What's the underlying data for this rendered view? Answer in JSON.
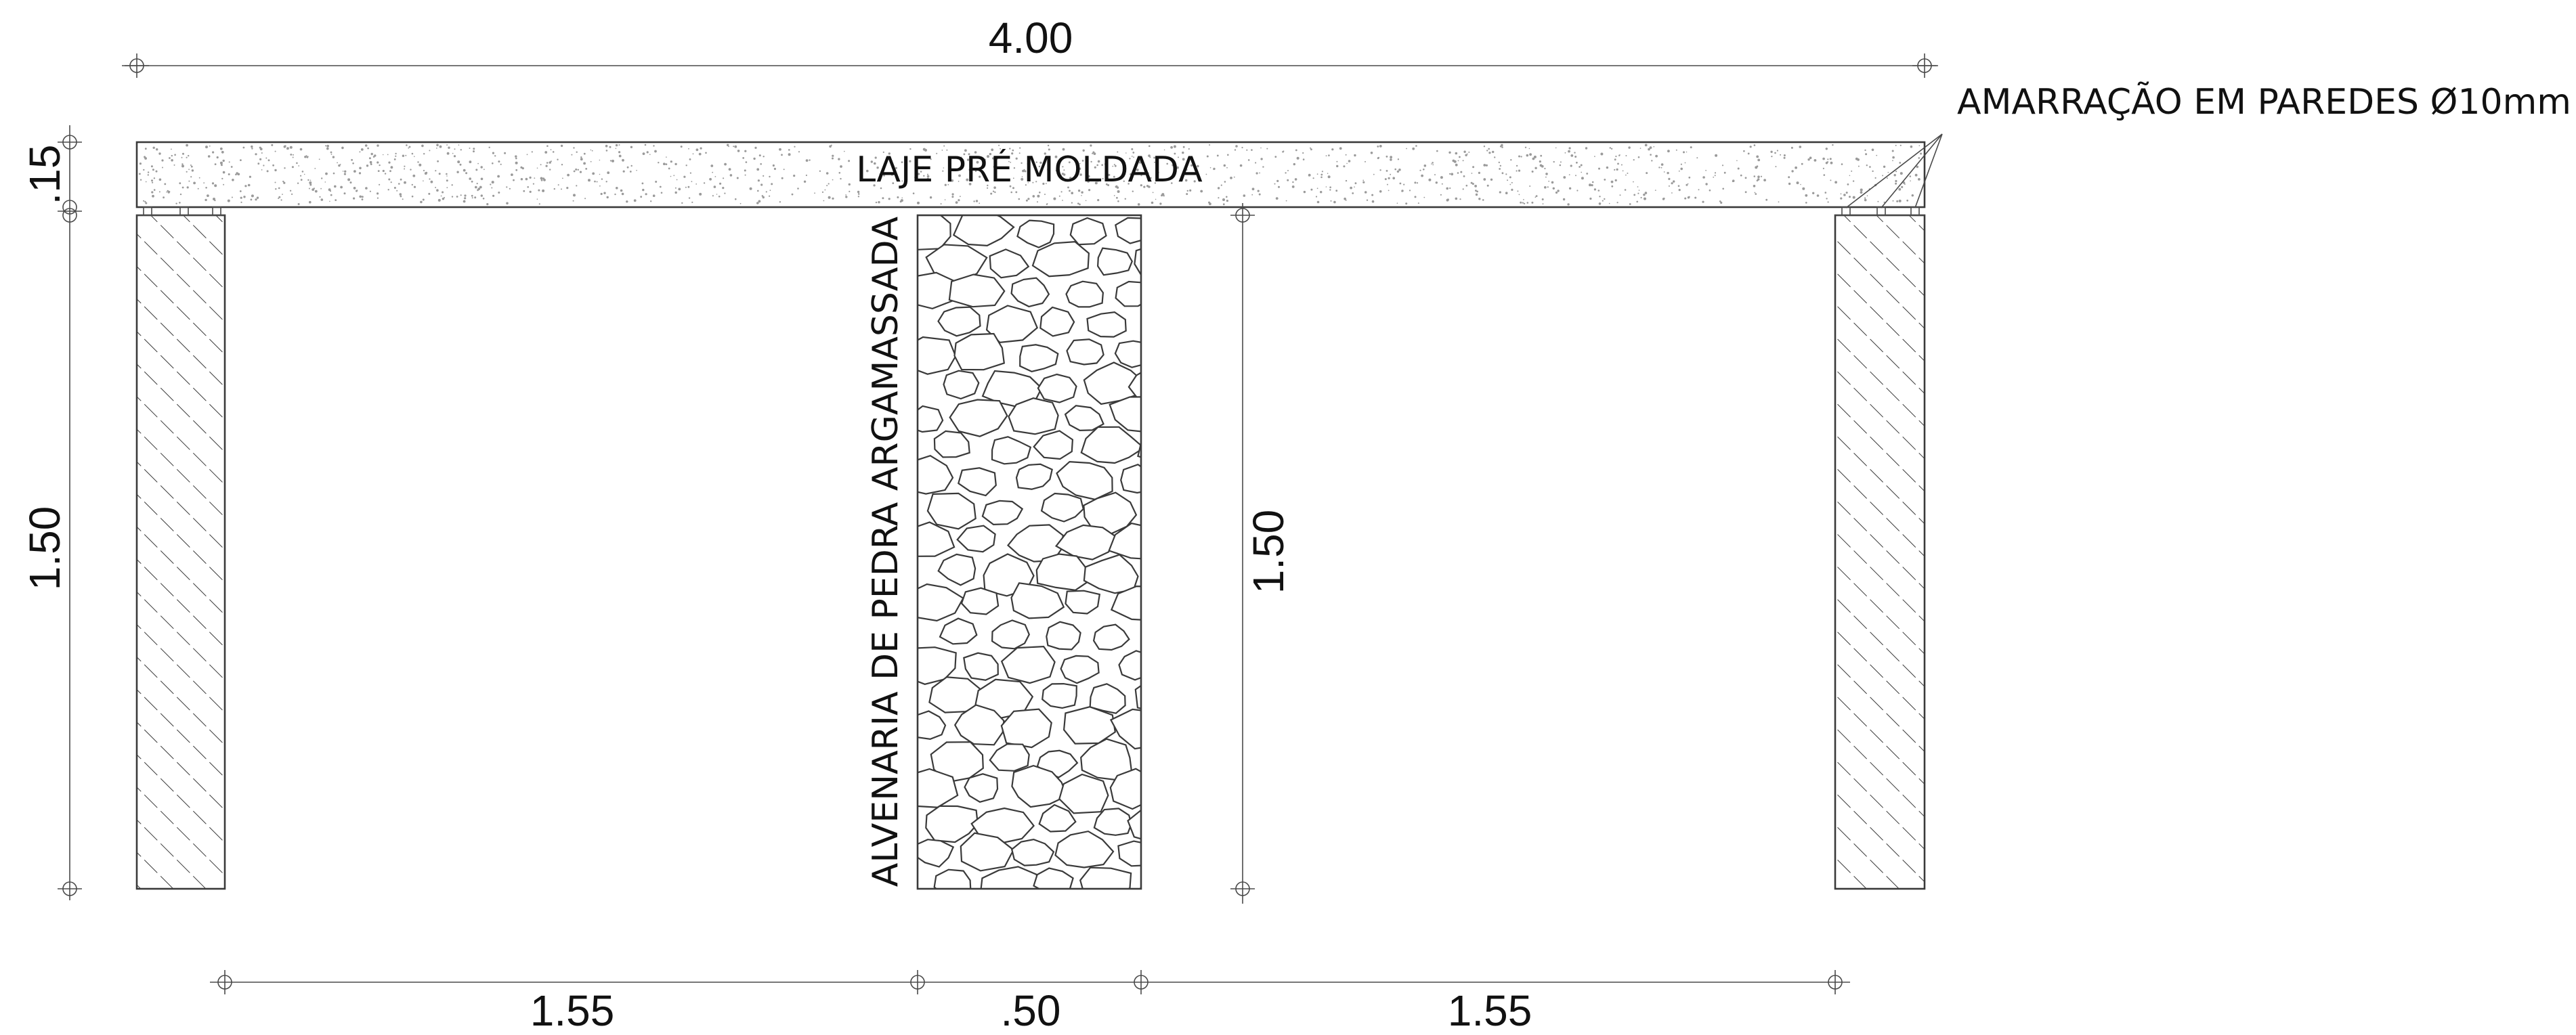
{
  "dimensions": {
    "total_width": "4.00",
    "slab_thickness": ".15",
    "wall_height_left": "1.50",
    "wall_height_center": "1.50",
    "span_left": "1.55",
    "center_wall_width": ".50",
    "span_right": "1.55"
  },
  "labels": {
    "slab": "LAJE PRÉ MOLDADA",
    "stone_wall": "ALVENARIA DE PEDRA ARGAMASSADA",
    "tie_note": "AMARRAÇÃO EM PAREDES Ø10mm"
  },
  "colors": {
    "line": "#3a3a3a",
    "text": "#111111",
    "background": "#ffffff"
  }
}
